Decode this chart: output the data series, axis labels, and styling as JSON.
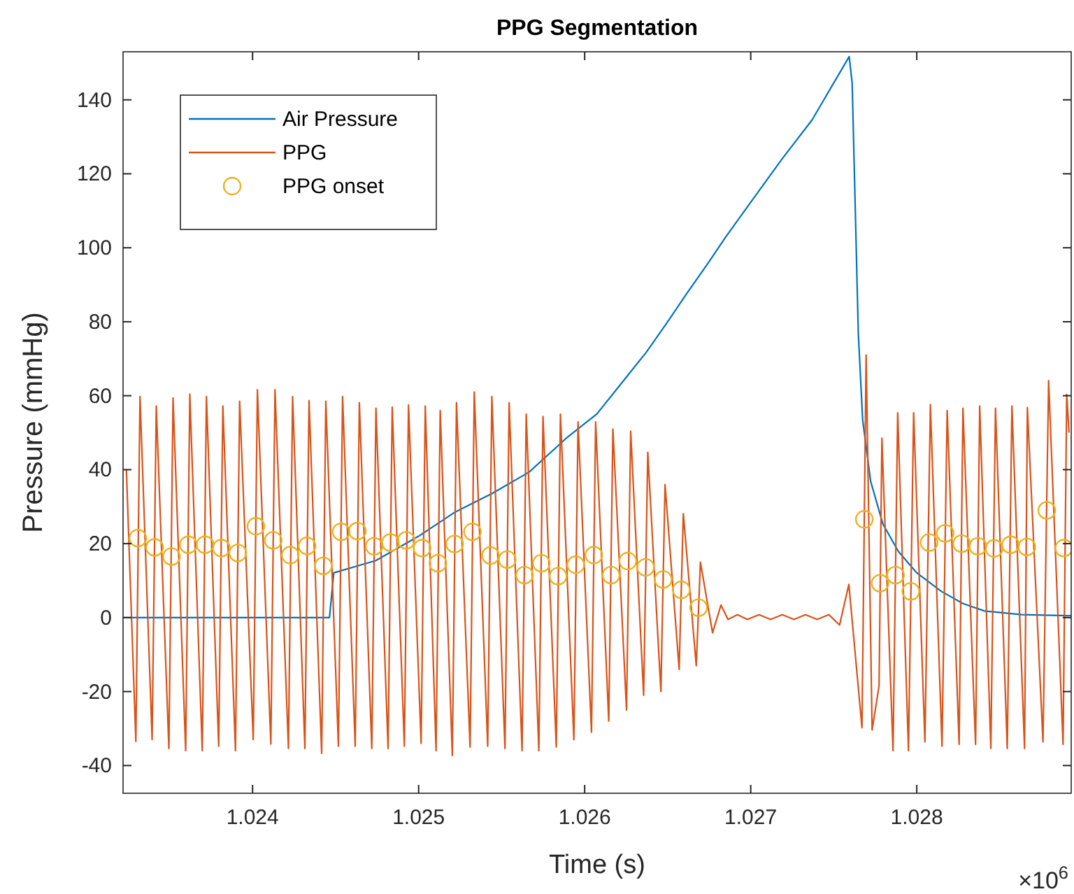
{
  "chart_data": {
    "type": "line",
    "title": "PPG Segmentation",
    "xlabel": "Time (s)",
    "ylabel": "Pressure (mmHg)",
    "annotations": [
      "×10$^{6}$"
    ],
    "xlim": [
      1.02322,
      1.02893
    ],
    "ylim": [
      -47.5,
      153
    ],
    "xticks": [
      1.024,
      1.025,
      1.026,
      1.027,
      1.028
    ],
    "yticks": [
      -40,
      -20,
      0,
      20,
      40,
      60,
      80,
      100,
      120,
      140
    ],
    "legend": "top left",
    "series": [
      {
        "name": "Air Pressure",
        "color": "#0072bd",
        "marker": "none",
        "x": [
          1.02322,
          1.02445,
          1.024463,
          1.024489,
          1.024741,
          1.025,
          1.025222,
          1.025444,
          1.025667,
          1.025889,
          1.026074,
          1.026222,
          1.02637,
          1.0265,
          1.026611,
          1.026741,
          1.026852,
          1.027,
          1.027185,
          1.02737,
          1.027593,
          1.027611,
          1.02763,
          1.027648,
          1.027674,
          1.027722,
          1.027796,
          1.027889,
          1.028,
          1.028148,
          1.028278,
          1.028407,
          1.02863,
          1.02893
        ],
        "values": [
          0,
          0,
          0,
          12.1,
          15.4,
          22.0,
          28.6,
          33.6,
          39.4,
          48.5,
          55.1,
          63.4,
          71.7,
          80.0,
          87.4,
          95.7,
          103.1,
          112.3,
          123.8,
          134.6,
          151.7,
          144.5,
          109.8,
          76.7,
          53.5,
          36.9,
          25.3,
          17.9,
          12.1,
          7.1,
          3.8,
          1.8,
          0.8,
          0.5
        ]
      },
      {
        "name": "PPG",
        "color": "#d95319",
        "marker": "none",
        "x": [
          1.02324,
          1.023297,
          1.023322,
          1.023395,
          1.02342,
          1.023496,
          1.023521,
          1.023597,
          1.023622,
          1.023697,
          1.023722,
          1.023796,
          1.023821,
          1.023897,
          1.023922,
          1.024004,
          1.024029,
          1.02411,
          1.024135,
          1.024216,
          1.024241,
          1.024315,
          1.02434,
          1.024416,
          1.024441,
          1.024517,
          1.024542,
          1.024618,
          1.024643,
          1.024718,
          1.024743,
          1.024816,
          1.024841,
          1.024914,
          1.024939,
          1.025015,
          1.02504,
          1.025105,
          1.02513,
          1.025203,
          1.025228,
          1.02531,
          1.025335,
          1.025416,
          1.025441,
          1.02552,
          1.025545,
          1.025623,
          1.025648,
          1.025724,
          1.025749,
          1.025829,
          1.025854,
          1.025935,
          1.02596,
          1.026041,
          1.026066,
          1.026145,
          1.02617,
          1.026252,
          1.026277,
          1.026355,
          1.02638,
          1.026459,
          1.026484,
          1.026569,
          1.026594,
          1.026672,
          1.026697,
          1.02677,
          1.026821,
          1.026863,
          1.02692,
          1.02698,
          1.02705,
          1.02712,
          1.02719,
          1.02726,
          1.02733,
          1.0274,
          1.02747,
          1.027535,
          1.027591,
          1.02767,
          1.027695,
          1.027731,
          1.027773,
          1.02779,
          1.027857,
          1.027885,
          1.02795,
          1.027981,
          1.028049,
          1.028082,
          1.028152,
          1.028183,
          1.028255,
          1.028278,
          1.028354,
          1.028379,
          1.028446,
          1.028474,
          1.028545,
          1.028573,
          1.028649,
          1.028666,
          1.02876,
          1.028794,
          1.028881,
          1.028903,
          1.028917
        ],
        "values": [
          40,
          -33.5,
          59.8,
          -33,
          57.2,
          -35.4,
          59.4,
          -36,
          60.4,
          -36,
          59.8,
          -34.8,
          57.2,
          -36,
          58.5,
          -33,
          61.6,
          -34.2,
          61.6,
          -35.4,
          59.8,
          -35.4,
          58.7,
          -36.7,
          58.5,
          -34.8,
          59.8,
          -34.8,
          58.1,
          -35.4,
          56.6,
          -35.4,
          56.9,
          -34.8,
          57.5,
          -34,
          57.2,
          -36,
          56.0,
          -37.3,
          58.1,
          -35,
          61.0,
          -34.8,
          59.8,
          -35.4,
          58.1,
          -36,
          55.0,
          -36,
          54.4,
          -35,
          55.0,
          -33,
          52.9,
          -31,
          52.9,
          -28,
          51.0,
          -25,
          50.4,
          -21,
          44.7,
          -20,
          36.0,
          -14,
          28.1,
          -13,
          15.0,
          -4.1,
          3.4,
          -0.5,
          0.8,
          -0.5,
          0.8,
          -0.5,
          0.8,
          -0.5,
          0.8,
          -0.5,
          0.8,
          -2,
          9,
          -29.8,
          71,
          -30.4,
          -18.4,
          48.5,
          -36,
          55.4,
          -36,
          55.4,
          -33.6,
          57.6,
          -34.8,
          56,
          -34.3,
          56.6,
          -34.3,
          57.2,
          -35.4,
          56.6,
          -35.4,
          57.2,
          -35.4,
          56.8,
          -33.6,
          64.1,
          -34.3,
          60.4,
          50
        ]
      },
      {
        "name": "PPG onset",
        "type": "scatter",
        "color": "#edb120",
        "marker": "circle",
        "x": [
          1.023309,
          1.02341,
          1.023512,
          1.023613,
          1.023714,
          1.023812,
          1.023911,
          1.02402,
          1.024124,
          1.024227,
          1.024328,
          1.024426,
          1.024533,
          1.024631,
          1.024732,
          1.02483,
          1.024925,
          1.025021,
          1.025116,
          1.025217,
          1.025324,
          1.025433,
          1.025534,
          1.025638,
          1.025739,
          1.02584,
          1.025946,
          1.026055,
          1.026159,
          1.02626,
          1.026367,
          1.026473,
          1.026582,
          1.026686,
          1.027684,
          1.027779,
          1.027872,
          1.027964,
          1.028074,
          1.028171,
          1.02827,
          1.028368,
          1.028466,
          1.028565,
          1.028663,
          1.028783,
          1.028886
        ],
        "values": [
          21.5,
          19.0,
          16.5,
          19.7,
          19.7,
          18.8,
          17.5,
          24.7,
          20.9,
          16.9,
          19.4,
          14.0,
          23.2,
          23.4,
          19.3,
          20.3,
          20.9,
          18.8,
          14.7,
          19.9,
          23.2,
          16.8,
          15.7,
          11.5,
          14.7,
          11.2,
          14.3,
          16.9,
          11.5,
          15.3,
          13.6,
          10.3,
          7.5,
          2.7,
          26.6,
          9.3,
          11.5,
          7.1,
          20.3,
          22.8,
          20.0,
          19.3,
          18.7,
          19.7,
          19.1,
          29.0,
          18.8
        ]
      }
    ]
  }
}
